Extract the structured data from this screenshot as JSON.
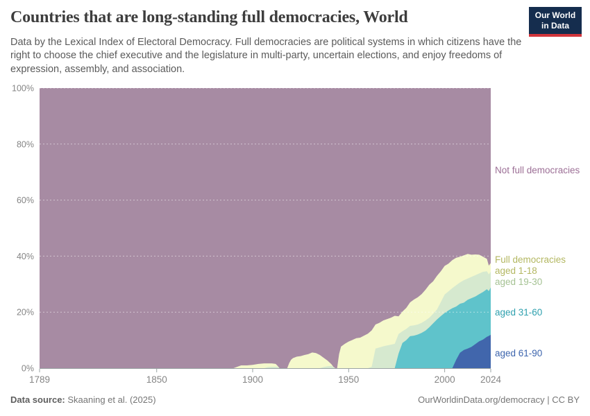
{
  "header": {
    "title": "Countries that are long-standing full democracies, World",
    "subtitle": "Data by the Lexical Index of Electoral Democracy. Full democracies are political systems in which citizens have the right to choose the chief executive and the legislature in multi-party, uncertain elections, and enjoy freedoms of expression, assembly, and association.",
    "logo": {
      "line1": "Our World",
      "line2": "in Data"
    }
  },
  "series_labels": {
    "not_full": "Not full democracies",
    "full_aged_1_18": "Full democracies aged 1-18",
    "aged_19_30": "aged 19-30",
    "aged_31_60": "aged 31-60",
    "aged_61_90": "aged 61-90"
  },
  "footer": {
    "source_label": "Data source:",
    "source_value": " Skaaning et al. (2025)",
    "rights": "OurWorldinData.org/democracy | CC BY"
  },
  "style": {
    "logo_bg": "#152d4e",
    "logo_red": "#d2353c",
    "axis_text": "#858585",
    "axis_line": "#9aa3a3",
    "grid_dash": "rgba(255,255,255,0.5)",
    "label_colors": {
      "not_full": "#9c6f96",
      "full_aged_1_18": "#b3b761",
      "aged_19_30": "#a5c293",
      "aged_31_60": "#2ea0ae",
      "aged_61_90": "#3c64ad"
    }
  },
  "chart_data": {
    "type": "area",
    "stacked": true,
    "title": "Countries that are long-standing full democracies, World",
    "unit": "% of countries",
    "x_range": [
      1789,
      2024
    ],
    "y_range": [
      0,
      100
    ],
    "x_ticks": [
      1789,
      1850,
      1900,
      1950,
      2000,
      2024
    ],
    "y_tick_values": [
      0,
      20,
      40,
      60,
      80,
      100
    ],
    "y_tick_labels": [
      "0%",
      "20%",
      "40%",
      "60%",
      "80%",
      "100%"
    ],
    "grid": "dashed horizontal",
    "legend_position": "labels at right edge of plot",
    "series": [
      {
        "name": "Full democracies aged 61-90",
        "color": "#4166ac"
      },
      {
        "name": "Full democracies aged 31-60",
        "color": "#5fc3cb"
      },
      {
        "name": "Full democracies aged 19-30",
        "color": "#d6e9cf"
      },
      {
        "name": "Full democracies aged 1-18",
        "color": "#f5f9cc"
      },
      {
        "name": "Not full democracies",
        "color": "#a78ba3",
        "is_remainder_to_100": true
      }
    ],
    "columns": [
      "year",
      "aged 61-90 %",
      "aged 31-60 %",
      "aged 19-30 %",
      "aged 1-18 %"
    ],
    "rows_percent": [
      [
        1789,
        0,
        0,
        0,
        0
      ],
      [
        1890,
        0,
        0,
        0,
        0
      ],
      [
        1892,
        0,
        0,
        0,
        0.5
      ],
      [
        1894,
        0,
        0,
        0,
        1.0
      ],
      [
        1897,
        0,
        0,
        0,
        1.0
      ],
      [
        1900,
        0,
        0,
        0,
        1.2
      ],
      [
        1903,
        0,
        0,
        0,
        1.5
      ],
      [
        1906,
        0,
        0,
        0,
        1.7
      ],
      [
        1908,
        0,
        0,
        0.4,
        1.3
      ],
      [
        1910,
        0,
        0,
        0.5,
        1.2
      ],
      [
        1912,
        0,
        0,
        0.5,
        1.0
      ],
      [
        1913,
        0,
        0,
        0.5,
        0.3
      ],
      [
        1914,
        0,
        0,
        0,
        0
      ],
      [
        1918,
        0,
        0,
        0,
        0
      ],
      [
        1919,
        0,
        0,
        0,
        1.8
      ],
      [
        1920,
        0,
        0,
        0,
        3.0
      ],
      [
        1921,
        0,
        0,
        0,
        3.6
      ],
      [
        1923,
        0,
        0,
        0,
        4.1
      ],
      [
        1925,
        0,
        0,
        0,
        4.3
      ],
      [
        1927,
        0,
        0,
        0,
        4.7
      ],
      [
        1929,
        0,
        0,
        0,
        5.0
      ],
      [
        1931,
        0,
        0,
        0,
        5.6
      ],
      [
        1933,
        0,
        0,
        0,
        5.4
      ],
      [
        1935,
        0,
        0,
        0,
        4.7
      ],
      [
        1937,
        0,
        0,
        0.4,
        3.3
      ],
      [
        1939,
        0,
        0,
        0.7,
        2.0
      ],
      [
        1941,
        0,
        0,
        0.8,
        0.6
      ],
      [
        1942,
        0,
        0,
        0.4,
        0.1
      ],
      [
        1943,
        0,
        0,
        0,
        0
      ],
      [
        1944,
        0,
        0,
        0,
        0
      ],
      [
        1945,
        0,
        0,
        0,
        5.0
      ],
      [
        1946,
        0,
        0,
        0,
        7.7
      ],
      [
        1948,
        0,
        0,
        0,
        8.7
      ],
      [
        1950,
        0,
        0,
        0,
        9.5
      ],
      [
        1952,
        0,
        0,
        0,
        10.1
      ],
      [
        1954,
        0,
        0,
        0,
        10.7
      ],
      [
        1956,
        0,
        0,
        0,
        10.9
      ],
      [
        1958,
        0,
        0,
        0,
        11.6
      ],
      [
        1960,
        0,
        0,
        0,
        12.3
      ],
      [
        1962,
        0,
        0,
        0.5,
        13.0
      ],
      [
        1964,
        0,
        0,
        7.0,
        8.6
      ],
      [
        1966,
        0,
        0,
        7.4,
        8.8
      ],
      [
        1968,
        0,
        0,
        7.8,
        9.2
      ],
      [
        1970,
        0,
        0,
        8.1,
        9.4
      ],
      [
        1972,
        0,
        0,
        8.4,
        9.6
      ],
      [
        1974,
        0,
        0,
        8.7,
        10.0
      ],
      [
        1976,
        0,
        5.2,
        7.0,
        6.3
      ],
      [
        1978,
        0,
        9.0,
        4.2,
        7.0
      ],
      [
        1980,
        0,
        10.0,
        4.0,
        7.5
      ],
      [
        1982,
        0,
        11.4,
        3.7,
        8.4
      ],
      [
        1984,
        0,
        11.6,
        3.7,
        9.2
      ],
      [
        1986,
        0,
        12.0,
        3.6,
        9.7
      ],
      [
        1988,
        0,
        12.6,
        3.6,
        10.2
      ],
      [
        1990,
        0,
        13.4,
        3.6,
        11.0
      ],
      [
        1992,
        0,
        14.6,
        3.4,
        11.8
      ],
      [
        1994,
        0,
        16.0,
        3.4,
        11.6
      ],
      [
        1996,
        0,
        17.4,
        3.6,
        12.0
      ],
      [
        1998,
        0,
        18.6,
        5.0,
        11.0
      ],
      [
        2000,
        0,
        19.7,
        6.6,
        10.2
      ],
      [
        2002,
        0,
        20.6,
        6.8,
        9.9
      ],
      [
        2004,
        0,
        21.4,
        7.2,
        10.0
      ],
      [
        2006,
        3.0,
        19.0,
        7.6,
        9.8
      ],
      [
        2008,
        5.5,
        17.5,
        7.6,
        9.2
      ],
      [
        2010,
        6.5,
        16.9,
        8.0,
        8.9
      ],
      [
        2012,
        7.0,
        17.4,
        7.6,
        8.8
      ],
      [
        2014,
        7.6,
        17.4,
        7.6,
        7.9
      ],
      [
        2016,
        8.6,
        17.0,
        7.6,
        7.4
      ],
      [
        2018,
        9.6,
        16.8,
        7.4,
        6.7
      ],
      [
        2020,
        10.2,
        17.0,
        7.2,
        5.4
      ],
      [
        2022,
        11.2,
        17.0,
        6.4,
        4.4
      ],
      [
        2023,
        11.5,
        16.0,
        6.0,
        3.1
      ],
      [
        2024,
        11.9,
        16.9,
        5.6,
        3.1
      ]
    ]
  }
}
